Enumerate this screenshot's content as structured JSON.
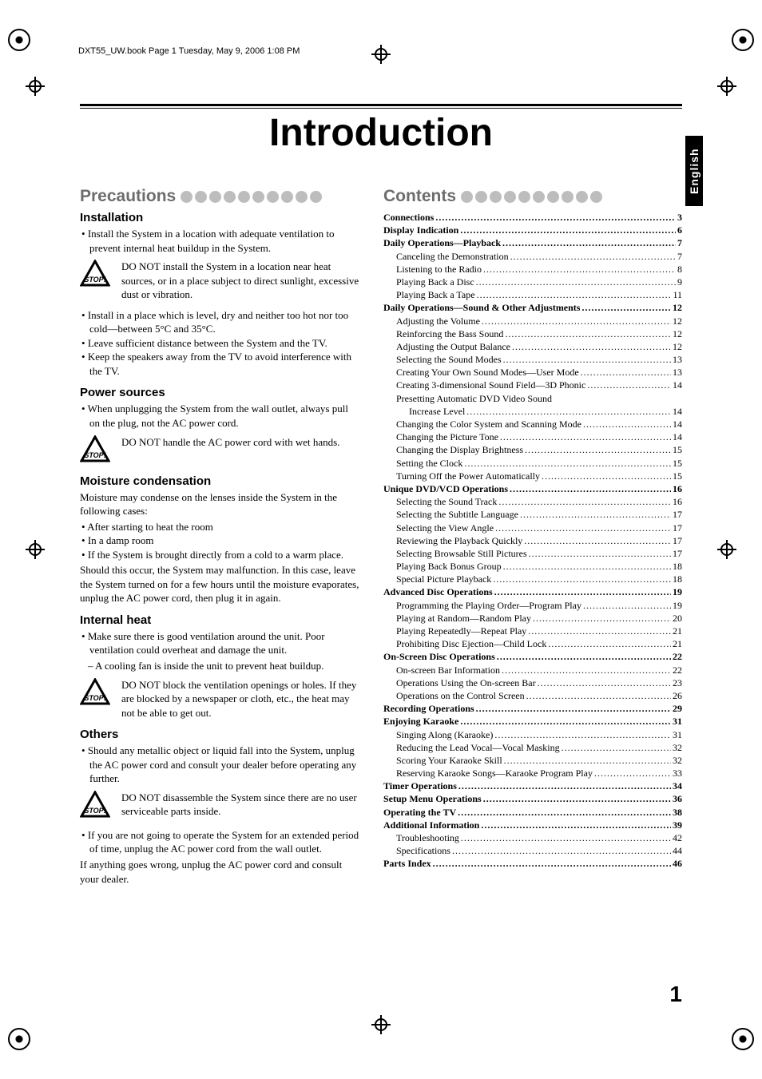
{
  "stamp": "DXT55_UW.book  Page 1  Tuesday, May 9, 2006  1:08 PM",
  "main_title": "Introduction",
  "lang_tab": "English",
  "page_number": "1",
  "colors": {
    "heading_gray": "#6d6d6d",
    "dot_gray": "#bdbdbd",
    "text": "#000000",
    "background": "#ffffff"
  },
  "typography": {
    "title_fontsize": 48,
    "section_head_fontsize": 21,
    "sub_head_fontsize": 15,
    "body_fontsize": 13,
    "toc_fontsize": 12,
    "page_number_fontsize": 28,
    "body_font": "Times New Roman",
    "heading_font": "Arial"
  },
  "left": {
    "section_title": "Precautions",
    "h1_installation": "Installation",
    "install_bullets": [
      "Install the System in a location with adequate ventilation to prevent internal heat buildup in the System."
    ],
    "install_stop": "DO NOT install the System in a location near heat sources, or in a place subject to direct sunlight, excessive dust or vibration.",
    "install_bullets2": [
      "Install in a place which is level, dry and neither too hot nor too cold—between 5°C and 35°C.",
      "Leave sufficient distance between the System and the TV.",
      "Keep the speakers away from the TV to avoid interference with the TV."
    ],
    "h_power": "Power sources",
    "power_bullets": [
      "When unplugging the System from the wall outlet, always pull on the plug, not the AC power cord."
    ],
    "power_stop": "DO NOT handle the AC power cord with wet hands.",
    "h_moisture": "Moisture condensation",
    "moisture_intro": "Moisture may condense on the lenses inside the System in the following cases:",
    "moisture_bullets": [
      "After starting to heat the room",
      "In a damp room",
      "If the System is brought directly from a cold to a warm place."
    ],
    "moisture_tail": "Should this occur, the System may malfunction. In this case, leave the System turned on for a few hours until the moisture evaporates, unplug the AC power cord, then plug it in again.",
    "h_internal": "Internal heat",
    "internal_bullets": [
      "Make sure there is good ventilation around the unit. Poor ventilation could overheat and damage the unit."
    ],
    "internal_dash": "A cooling fan is inside the unit to prevent heat buildup.",
    "internal_stop": "DO NOT block the ventilation openings or holes. If they are blocked by a newspaper or cloth, etc., the heat may not be able to get out.",
    "h_others": "Others",
    "others_bullets": [
      "Should any metallic object or liquid fall into the System, unplug the AC power cord and consult your dealer before operating any further."
    ],
    "others_stop": "DO NOT disassemble the System since there are no user serviceable parts inside.",
    "others_bullets2": [
      "If you are not going to operate the System for an extended period of time, unplug the AC power cord from the wall outlet."
    ],
    "others_tail": "If anything goes wrong, unplug the AC power cord and consult your dealer."
  },
  "right": {
    "section_title": "Contents",
    "toc": [
      {
        "lvl": 0,
        "bold": true,
        "label": "Connections",
        "page": "3"
      },
      {
        "lvl": 0,
        "bold": true,
        "label": "Display Indication",
        "page": "6"
      },
      {
        "lvl": 0,
        "bold": true,
        "label": "Daily Operations—Playback",
        "page": "7"
      },
      {
        "lvl": 1,
        "label": "Canceling the Demonstration",
        "page": "7"
      },
      {
        "lvl": 1,
        "label": "Listening to the Radio",
        "page": "8"
      },
      {
        "lvl": 1,
        "label": "Playing Back a Disc",
        "page": "9"
      },
      {
        "lvl": 1,
        "label": "Playing Back a Tape",
        "page": "11"
      },
      {
        "lvl": 0,
        "bold": true,
        "label": "Daily Operations—Sound & Other Adjustments",
        "page": "12"
      },
      {
        "lvl": 1,
        "label": "Adjusting the Volume",
        "page": "12"
      },
      {
        "lvl": 1,
        "label": "Reinforcing the Bass Sound",
        "page": "12"
      },
      {
        "lvl": 1,
        "label": "Adjusting the Output Balance",
        "page": "12"
      },
      {
        "lvl": 1,
        "label": "Selecting the Sound Modes",
        "page": "13"
      },
      {
        "lvl": 1,
        "label": "Creating Your Own Sound Modes—User Mode",
        "page": "13"
      },
      {
        "lvl": 1,
        "label": "Creating 3-dimensional Sound Field—3D Phonic",
        "page": "14"
      },
      {
        "lvl": 1,
        "nolead": true,
        "label": "Presetting Automatic DVD Video Sound"
      },
      {
        "lvl": 2,
        "label": "Increase Level",
        "page": "14"
      },
      {
        "lvl": 1,
        "label": "Changing the Color System and Scanning Mode",
        "page": "14"
      },
      {
        "lvl": 1,
        "label": "Changing the Picture Tone",
        "page": "14"
      },
      {
        "lvl": 1,
        "label": "Changing the Display Brightness",
        "page": "15"
      },
      {
        "lvl": 1,
        "label": "Setting the Clock",
        "page": "15"
      },
      {
        "lvl": 1,
        "label": "Turning Off the Power Automatically",
        "page": "15"
      },
      {
        "lvl": 0,
        "bold": true,
        "label": "Unique DVD/VCD Operations",
        "page": "16"
      },
      {
        "lvl": 1,
        "label": "Selecting the Sound Track",
        "page": "16"
      },
      {
        "lvl": 1,
        "label": "Selecting the Subtitle Language",
        "page": "17"
      },
      {
        "lvl": 1,
        "label": "Selecting the View Angle",
        "page": "17"
      },
      {
        "lvl": 1,
        "label": "Reviewing the Playback Quickly",
        "page": "17"
      },
      {
        "lvl": 1,
        "label": "Selecting Browsable Still Pictures",
        "page": "17"
      },
      {
        "lvl": 1,
        "label": "Playing Back Bonus Group",
        "page": "18"
      },
      {
        "lvl": 1,
        "label": "Special Picture Playback",
        "page": "18"
      },
      {
        "lvl": 0,
        "bold": true,
        "label": "Advanced Disc Operations",
        "page": "19"
      },
      {
        "lvl": 1,
        "label": "Programming the Playing Order—Program Play",
        "page": "19"
      },
      {
        "lvl": 1,
        "label": "Playing at Random—Random Play",
        "page": "20"
      },
      {
        "lvl": 1,
        "label": "Playing Repeatedly—Repeat Play",
        "page": "21"
      },
      {
        "lvl": 1,
        "label": "Prohibiting Disc Ejection—Child Lock",
        "page": "21"
      },
      {
        "lvl": 0,
        "bold": true,
        "label": "On-Screen Disc Operations",
        "page": "22"
      },
      {
        "lvl": 1,
        "label": "On-screen Bar Information",
        "page": "22"
      },
      {
        "lvl": 1,
        "label": "Operations Using the On-screen Bar",
        "page": "23"
      },
      {
        "lvl": 1,
        "label": "Operations on the Control Screen",
        "page": "26"
      },
      {
        "lvl": 0,
        "bold": true,
        "label": "Recording Operations",
        "page": "29"
      },
      {
        "lvl": 0,
        "bold": true,
        "label": "Enjoying Karaoke",
        "page": "31"
      },
      {
        "lvl": 1,
        "label": "Singing Along (Karaoke)",
        "page": "31"
      },
      {
        "lvl": 1,
        "label": "Reducing the Lead Vocal—Vocal Masking",
        "page": "32"
      },
      {
        "lvl": 1,
        "label": "Scoring Your Karaoke Skill",
        "page": "32"
      },
      {
        "lvl": 1,
        "label": "Reserving Karaoke Songs—Karaoke Program Play",
        "page": "33"
      },
      {
        "lvl": 0,
        "bold": true,
        "label": "Timer Operations",
        "page": "34"
      },
      {
        "lvl": 0,
        "bold": true,
        "label": "Setup Menu Operations",
        "page": "36"
      },
      {
        "lvl": 0,
        "bold": true,
        "label": "Operating the TV",
        "page": "38"
      },
      {
        "lvl": 0,
        "bold": true,
        "label": "Additional Information",
        "page": "39"
      },
      {
        "lvl": 1,
        "label": "Troubleshooting",
        "page": "42"
      },
      {
        "lvl": 1,
        "label": "Specifications",
        "page": "44"
      },
      {
        "lvl": 0,
        "bold": true,
        "label": "Parts Index",
        "page": "46"
      }
    ]
  }
}
